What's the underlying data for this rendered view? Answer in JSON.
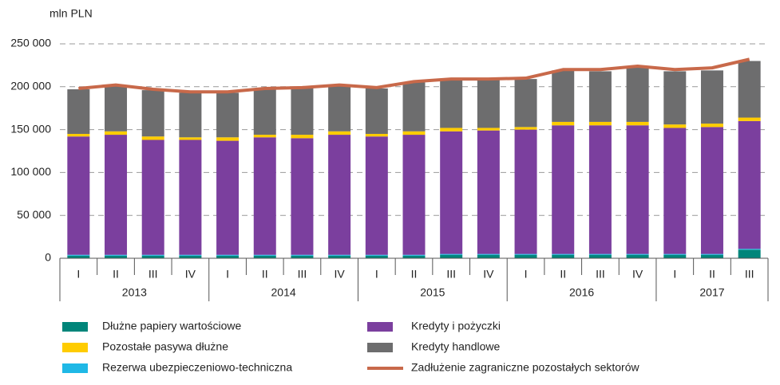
{
  "chart_data": {
    "type": "bar",
    "stacked": true,
    "y_label": "mln PLN",
    "categories": [
      "I",
      "II",
      "III",
      "IV",
      "I",
      "II",
      "III",
      "IV",
      "I",
      "II",
      "III",
      "IV",
      "I",
      "II",
      "III",
      "IV",
      "I",
      "II",
      "III"
    ],
    "years": [
      "2013",
      "2014",
      "2015",
      "2016",
      "2017"
    ],
    "series": [
      {
        "name": "Dłużne papiery wartościowe",
        "color": "#00857a",
        "values": [
          3000,
          3000,
          3000,
          3000,
          3000,
          3000,
          3000,
          3000,
          3000,
          3000,
          4000,
          4000,
          4000,
          4000,
          4000,
          4000,
          4000,
          4000,
          10000
        ]
      },
      {
        "name": "Rezerwa ubezpieczeniowo-techniczna",
        "color": "#1fb8e6",
        "values": [
          1000,
          1000,
          1000,
          1000,
          1000,
          1000,
          1000,
          1000,
          1000,
          1000,
          1000,
          1000,
          1000,
          1000,
          1000,
          1000,
          1000,
          1000,
          1000
        ]
      },
      {
        "name": "Kredyty i pożyczki",
        "color": "#7b3f9e",
        "values": [
          138000,
          140000,
          134000,
          134000,
          133000,
          137000,
          136000,
          140000,
          138000,
          140000,
          143000,
          144000,
          145000,
          150000,
          150000,
          150000,
          147000,
          148000,
          149000
        ]
      },
      {
        "name": "Pozostałe pasywa dłużne",
        "color": "#ffcc00",
        "values": [
          3000,
          4000,
          4000,
          3000,
          4000,
          3000,
          4000,
          4000,
          3000,
          4000,
          4000,
          3000,
          3000,
          4000,
          4000,
          4000,
          4000,
          4000,
          4000
        ]
      },
      {
        "name": "Kredyty handlowe",
        "color": "#6d6d6e",
        "values": [
          52000,
          53000,
          54000,
          52000,
          52000,
          53000,
          54000,
          53000,
          53000,
          57000,
          56000,
          56000,
          56000,
          60000,
          59000,
          64000,
          62000,
          62000,
          66000
        ]
      },
      {
        "name": "Zadłużenie zagraniczne pozostałych sektorów",
        "color": "#c8694a",
        "type": "line",
        "values": [
          198000,
          202000,
          197000,
          194000,
          194000,
          198000,
          199000,
          202000,
          199000,
          206000,
          209000,
          209000,
          210000,
          220000,
          220000,
          224000,
          220000,
          222000,
          232000
        ]
      }
    ],
    "ylim": [
      0,
      250000
    ],
    "yticks": [
      0,
      {
        "value": 50000,
        "label": "50 000"
      },
      {
        "value": 100000,
        "label": "100 000"
      },
      {
        "value": 150000,
        "label": "150 000"
      },
      {
        "value": 200000,
        "label": "200 000"
      },
      {
        "value": 250000,
        "label": "250 000"
      }
    ],
    "grid": true
  }
}
